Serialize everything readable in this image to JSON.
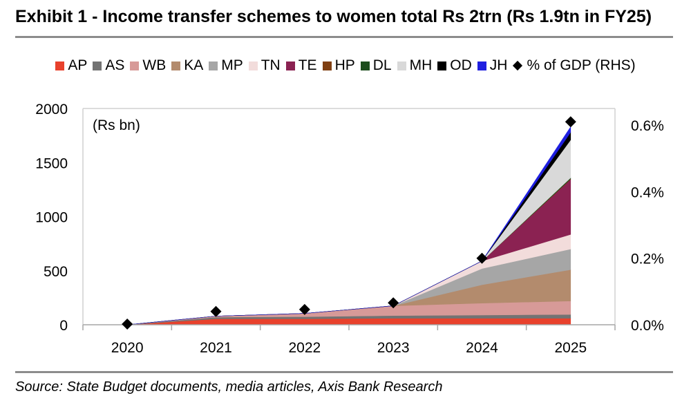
{
  "header": {
    "title": "Exhibit 1 - Income transfer schemes to women total Rs 2trn (Rs 1.9tn in FY25)"
  },
  "footer": {
    "source": "Source: State Budget documents, media articles, Axis Bank Research"
  },
  "chart_data": {
    "type": "area",
    "stacked": true,
    "unit_label": "(Rs bn)",
    "x": [
      "2020",
      "2021",
      "2022",
      "2023",
      "2024",
      "2025"
    ],
    "ylim": [
      0,
      2000
    ],
    "yticks": [
      "0",
      "500",
      "1000",
      "1500",
      "2000"
    ],
    "y2lim": [
      0,
      0.0065
    ],
    "y2ticks": [
      "0.0%",
      "0.2%",
      "0.4%",
      "0.6%"
    ],
    "y2tick_values": [
      0,
      0.002,
      0.004,
      0.006
    ],
    "grid": false,
    "legend_position": "top",
    "series": [
      {
        "name": "AP",
        "color": "#e8412c",
        "values": [
          0,
          55,
          55,
          60,
          60,
          60
        ]
      },
      {
        "name": "AS",
        "color": "#737373",
        "values": [
          0,
          15,
          20,
          25,
          30,
          35
        ]
      },
      {
        "name": "WB",
        "color": "#d79a98",
        "values": [
          0,
          10,
          30,
          90,
          110,
          125
        ]
      },
      {
        "name": "KA",
        "color": "#b38b6d",
        "values": [
          0,
          0,
          0,
          0,
          170,
          290
        ]
      },
      {
        "name": "MP",
        "color": "#a6a6a6",
        "values": [
          0,
          0,
          0,
          0,
          150,
          190
        ]
      },
      {
        "name": "TN",
        "color": "#f2dcdb",
        "values": [
          0,
          0,
          0,
          0,
          70,
          135
        ]
      },
      {
        "name": "TE",
        "color": "#8b2252",
        "values": [
          0,
          0,
          0,
          0,
          0,
          510
        ]
      },
      {
        "name": "HP",
        "color": "#7f3f11",
        "values": [
          0,
          0,
          0,
          0,
          0,
          5
        ]
      },
      {
        "name": "DL",
        "color": "#1d4d1d",
        "values": [
          0,
          0,
          0,
          0,
          0,
          10
        ]
      },
      {
        "name": "MH",
        "color": "#d9d9d9",
        "values": [
          0,
          0,
          0,
          0,
          0,
          350
        ]
      },
      {
        "name": "OD",
        "color": "#000000",
        "values": [
          0,
          0,
          0,
          0,
          0,
          70
        ]
      },
      {
        "name": "JH",
        "color": "#1f1fe0",
        "values": [
          0,
          0,
          0,
          0,
          0,
          50
        ]
      }
    ],
    "secondary_series": {
      "name": "% of GDP (RHS)",
      "marker": "diamond",
      "color": "#000000",
      "values": [
        2e-05,
        0.0004,
        0.00046,
        0.00066,
        0.002,
        0.0061
      ]
    }
  }
}
